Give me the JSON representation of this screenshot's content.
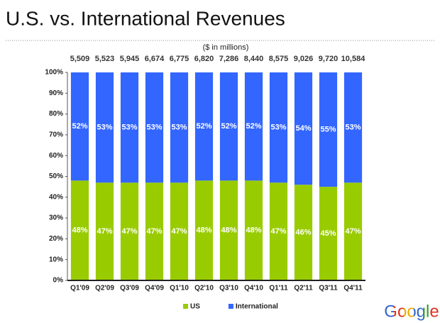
{
  "chart_data": {
    "type": "stacked_bar_100",
    "title": "U.S. vs. International Revenues",
    "subtitle": "($ in millions)",
    "logo": "Google",
    "categories": [
      "Q1'09",
      "Q2'09",
      "Q3'09",
      "Q4'09",
      "Q1'10",
      "Q2'10",
      "Q3'10",
      "Q4'10",
      "Q1'11",
      "Q2'11",
      "Q3'11",
      "Q4'11"
    ],
    "series": [
      {
        "name": "US",
        "color": "#99cc00",
        "values": [
          48,
          47,
          47,
          47,
          47,
          48,
          48,
          48,
          47,
          46,
          45,
          47
        ],
        "value_labels": [
          "48%",
          "47%",
          "47%",
          "47%",
          "47%",
          "48%",
          "48%",
          "48%",
          "47%",
          "46%",
          "45%",
          "47%"
        ]
      },
      {
        "name": "International",
        "color": "#3366ff",
        "values": [
          52,
          53,
          53,
          53,
          53,
          52,
          52,
          52,
          53,
          54,
          55,
          53
        ],
        "value_labels": [
          "52%",
          "53%",
          "53%",
          "53%",
          "53%",
          "52%",
          "52%",
          "52%",
          "53%",
          "54%",
          "55%",
          "53%"
        ]
      }
    ],
    "totals": {
      "values": [
        5509,
        5523,
        5945,
        6674,
        6775,
        6820,
        7286,
        8440,
        8575,
        9026,
        9720,
        10584
      ],
      "value_labels": [
        "5,509",
        "5,523",
        "5,945",
        "6,674",
        "6,775",
        "6,820",
        "7,286",
        "8,440",
        "8,575",
        "9,026",
        "9,720",
        "10,584"
      ]
    },
    "ylim": [
      0,
      100
    ],
    "yticks": [
      {
        "value": 0,
        "label": "0%"
      },
      {
        "value": 10,
        "label": "10%"
      },
      {
        "value": 20,
        "label": "20%"
      },
      {
        "value": 30,
        "label": "30%"
      },
      {
        "value": 40,
        "label": "40%"
      },
      {
        "value": 50,
        "label": "50%"
      },
      {
        "value": 60,
        "label": "60%"
      },
      {
        "value": 70,
        "label": "70%"
      },
      {
        "value": 80,
        "label": "80%"
      },
      {
        "value": 90,
        "label": "90%"
      },
      {
        "value": 100,
        "label": "100%"
      }
    ],
    "legend": "bottom"
  }
}
